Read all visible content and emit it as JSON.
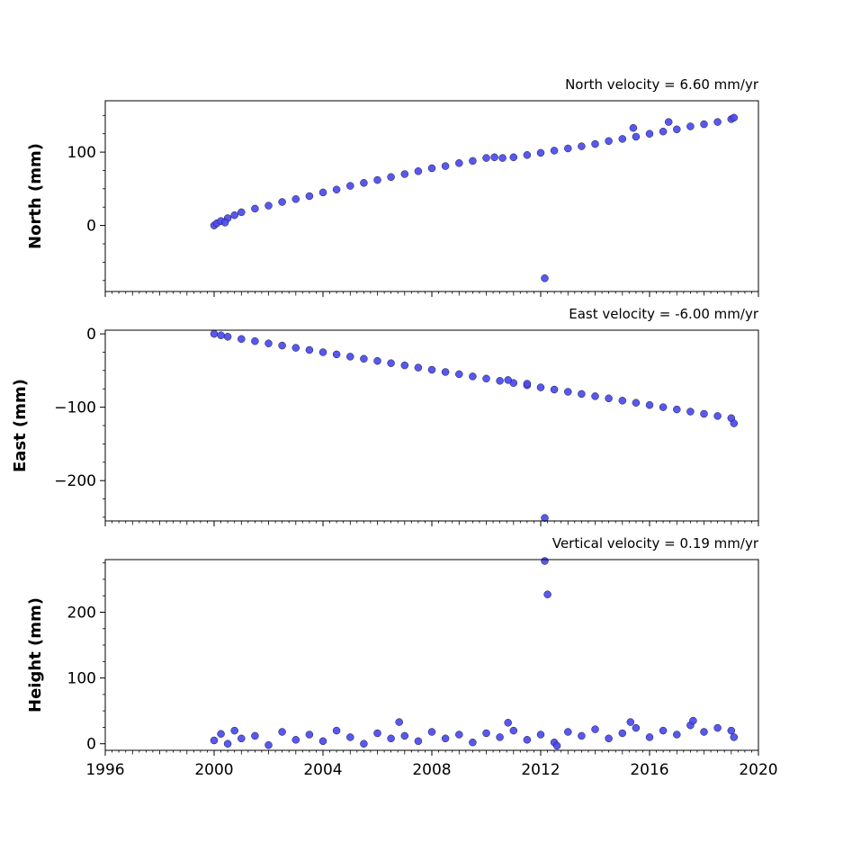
{
  "chart_data": [
    {
      "type": "scatter",
      "title": "North velocity = 6.60 mm/yr",
      "ylabel": "North (mm)",
      "xlabel": "",
      "xlim": [
        1996,
        2020
      ],
      "ylim": [
        -90,
        170
      ],
      "yticks": [
        0,
        100
      ],
      "ytick_labels": [
        "0",
        "100"
      ],
      "grid": false,
      "series": [
        {
          "color": "#4a4aee",
          "x": [
            2000.0,
            2000.1,
            2000.25,
            2000.5,
            2000.75,
            2001.0,
            2001.5,
            2002.0,
            2002.5,
            2003.0,
            2003.5,
            2004.0,
            2004.5,
            2005.0,
            2005.5,
            2006.0,
            2006.5,
            2007.0,
            2007.5,
            2008.0,
            2008.5,
            2009.0,
            2009.5,
            2010.0,
            2010.3,
            2010.6,
            2011.0,
            2011.5,
            2012.0,
            2012.5,
            2013.0,
            2013.5,
            2014.0,
            2014.5,
            2015.0,
            2015.5,
            2016.0,
            2016.5,
            2017.0,
            2017.5,
            2018.0,
            2018.5,
            2019.0,
            2019.1,
            2000.4,
            2012.15,
            2015.4,
            2016.7
          ],
          "y": [
            0,
            3,
            6,
            10,
            14,
            18,
            23,
            27,
            32,
            36,
            40,
            45,
            49,
            54,
            58,
            62,
            66,
            70,
            74,
            78,
            81,
            85,
            88,
            92,
            93,
            92,
            93,
            96,
            99,
            102,
            105,
            108,
            111,
            115,
            118,
            121,
            125,
            128,
            131,
            135,
            138,
            141,
            145,
            147,
            4,
            -72,
            133,
            141
          ]
        }
      ]
    },
    {
      "type": "scatter",
      "title": "East velocity = -6.00 mm/yr",
      "ylabel": "East (mm)",
      "xlabel": "",
      "xlim": [
        1996,
        2020
      ],
      "ylim": [
        -255,
        5
      ],
      "yticks": [
        0,
        -100,
        -200
      ],
      "ytick_labels": [
        "0",
        "−100",
        "−200"
      ],
      "grid": false,
      "series": [
        {
          "color": "#4a4aee",
          "x": [
            2000.0,
            2000.25,
            2000.5,
            2001.0,
            2001.5,
            2002.0,
            2002.5,
            2003.0,
            2003.5,
            2004.0,
            2004.5,
            2005.0,
            2005.5,
            2006.0,
            2006.5,
            2007.0,
            2007.5,
            2008.0,
            2008.5,
            2009.0,
            2009.5,
            2010.0,
            2010.5,
            2011.0,
            2011.5,
            2012.0,
            2012.5,
            2013.0,
            2013.5,
            2014.0,
            2014.5,
            2015.0,
            2015.5,
            2016.0,
            2016.5,
            2017.0,
            2017.5,
            2018.0,
            2018.5,
            2019.0,
            2019.1,
            2010.8,
            2011.5,
            2012.15
          ],
          "y": [
            0,
            -2,
            -4,
            -7,
            -10,
            -13,
            -16,
            -19,
            -22,
            -25,
            -28,
            -31,
            -34,
            -37,
            -40,
            -43,
            -46,
            -49,
            -52,
            -55,
            -58,
            -61,
            -64,
            -67,
            -70,
            -73,
            -76,
            -79,
            -82,
            -85,
            -88,
            -91,
            -94,
            -97,
            -100,
            -103,
            -106,
            -109,
            -112,
            -115,
            -122,
            -63,
            -68,
            -251
          ]
        }
      ]
    },
    {
      "type": "scatter",
      "title": "Vertical velocity = 0.19 mm/yr",
      "ylabel": "Height (mm)",
      "xlabel": "",
      "xlim": [
        1996,
        2020
      ],
      "ylim": [
        -10,
        280
      ],
      "xticks": [
        1996,
        2000,
        2004,
        2008,
        2012,
        2016,
        2020
      ],
      "xtick_labels": [
        "1996",
        "2000",
        "2004",
        "2008",
        "2012",
        "2016",
        "2020"
      ],
      "yticks": [
        0,
        100,
        200
      ],
      "ytick_labels": [
        "0",
        "100",
        "200"
      ],
      "grid": false,
      "series": [
        {
          "color": "#4a4aee",
          "x": [
            2000.0,
            2000.25,
            2000.5,
            2000.75,
            2001.0,
            2001.5,
            2002.0,
            2002.5,
            2003.0,
            2003.5,
            2004.0,
            2004.5,
            2005.0,
            2005.5,
            2006.0,
            2006.5,
            2007.0,
            2007.5,
            2008.0,
            2008.5,
            2009.0,
            2009.5,
            2010.0,
            2010.5,
            2011.0,
            2011.5,
            2012.0,
            2012.5,
            2013.0,
            2013.5,
            2014.0,
            2014.5,
            2015.0,
            2015.5,
            2016.0,
            2016.5,
            2017.0,
            2017.5,
            2018.0,
            2018.5,
            2019.0,
            2019.1,
            2006.8,
            2010.8,
            2012.6,
            2015.3,
            2017.6,
            2012.15,
            2012.25
          ],
          "y": [
            5,
            15,
            0,
            20,
            8,
            12,
            -2,
            18,
            6,
            14,
            4,
            20,
            10,
            0,
            16,
            8,
            12,
            4,
            18,
            8,
            14,
            2,
            16,
            10,
            20,
            6,
            14,
            2,
            18,
            12,
            22,
            8,
            16,
            24,
            10,
            20,
            14,
            28,
            18,
            24,
            20,
            10,
            33,
            32,
            -3,
            33,
            35,
            278,
            227
          ]
        }
      ]
    }
  ]
}
